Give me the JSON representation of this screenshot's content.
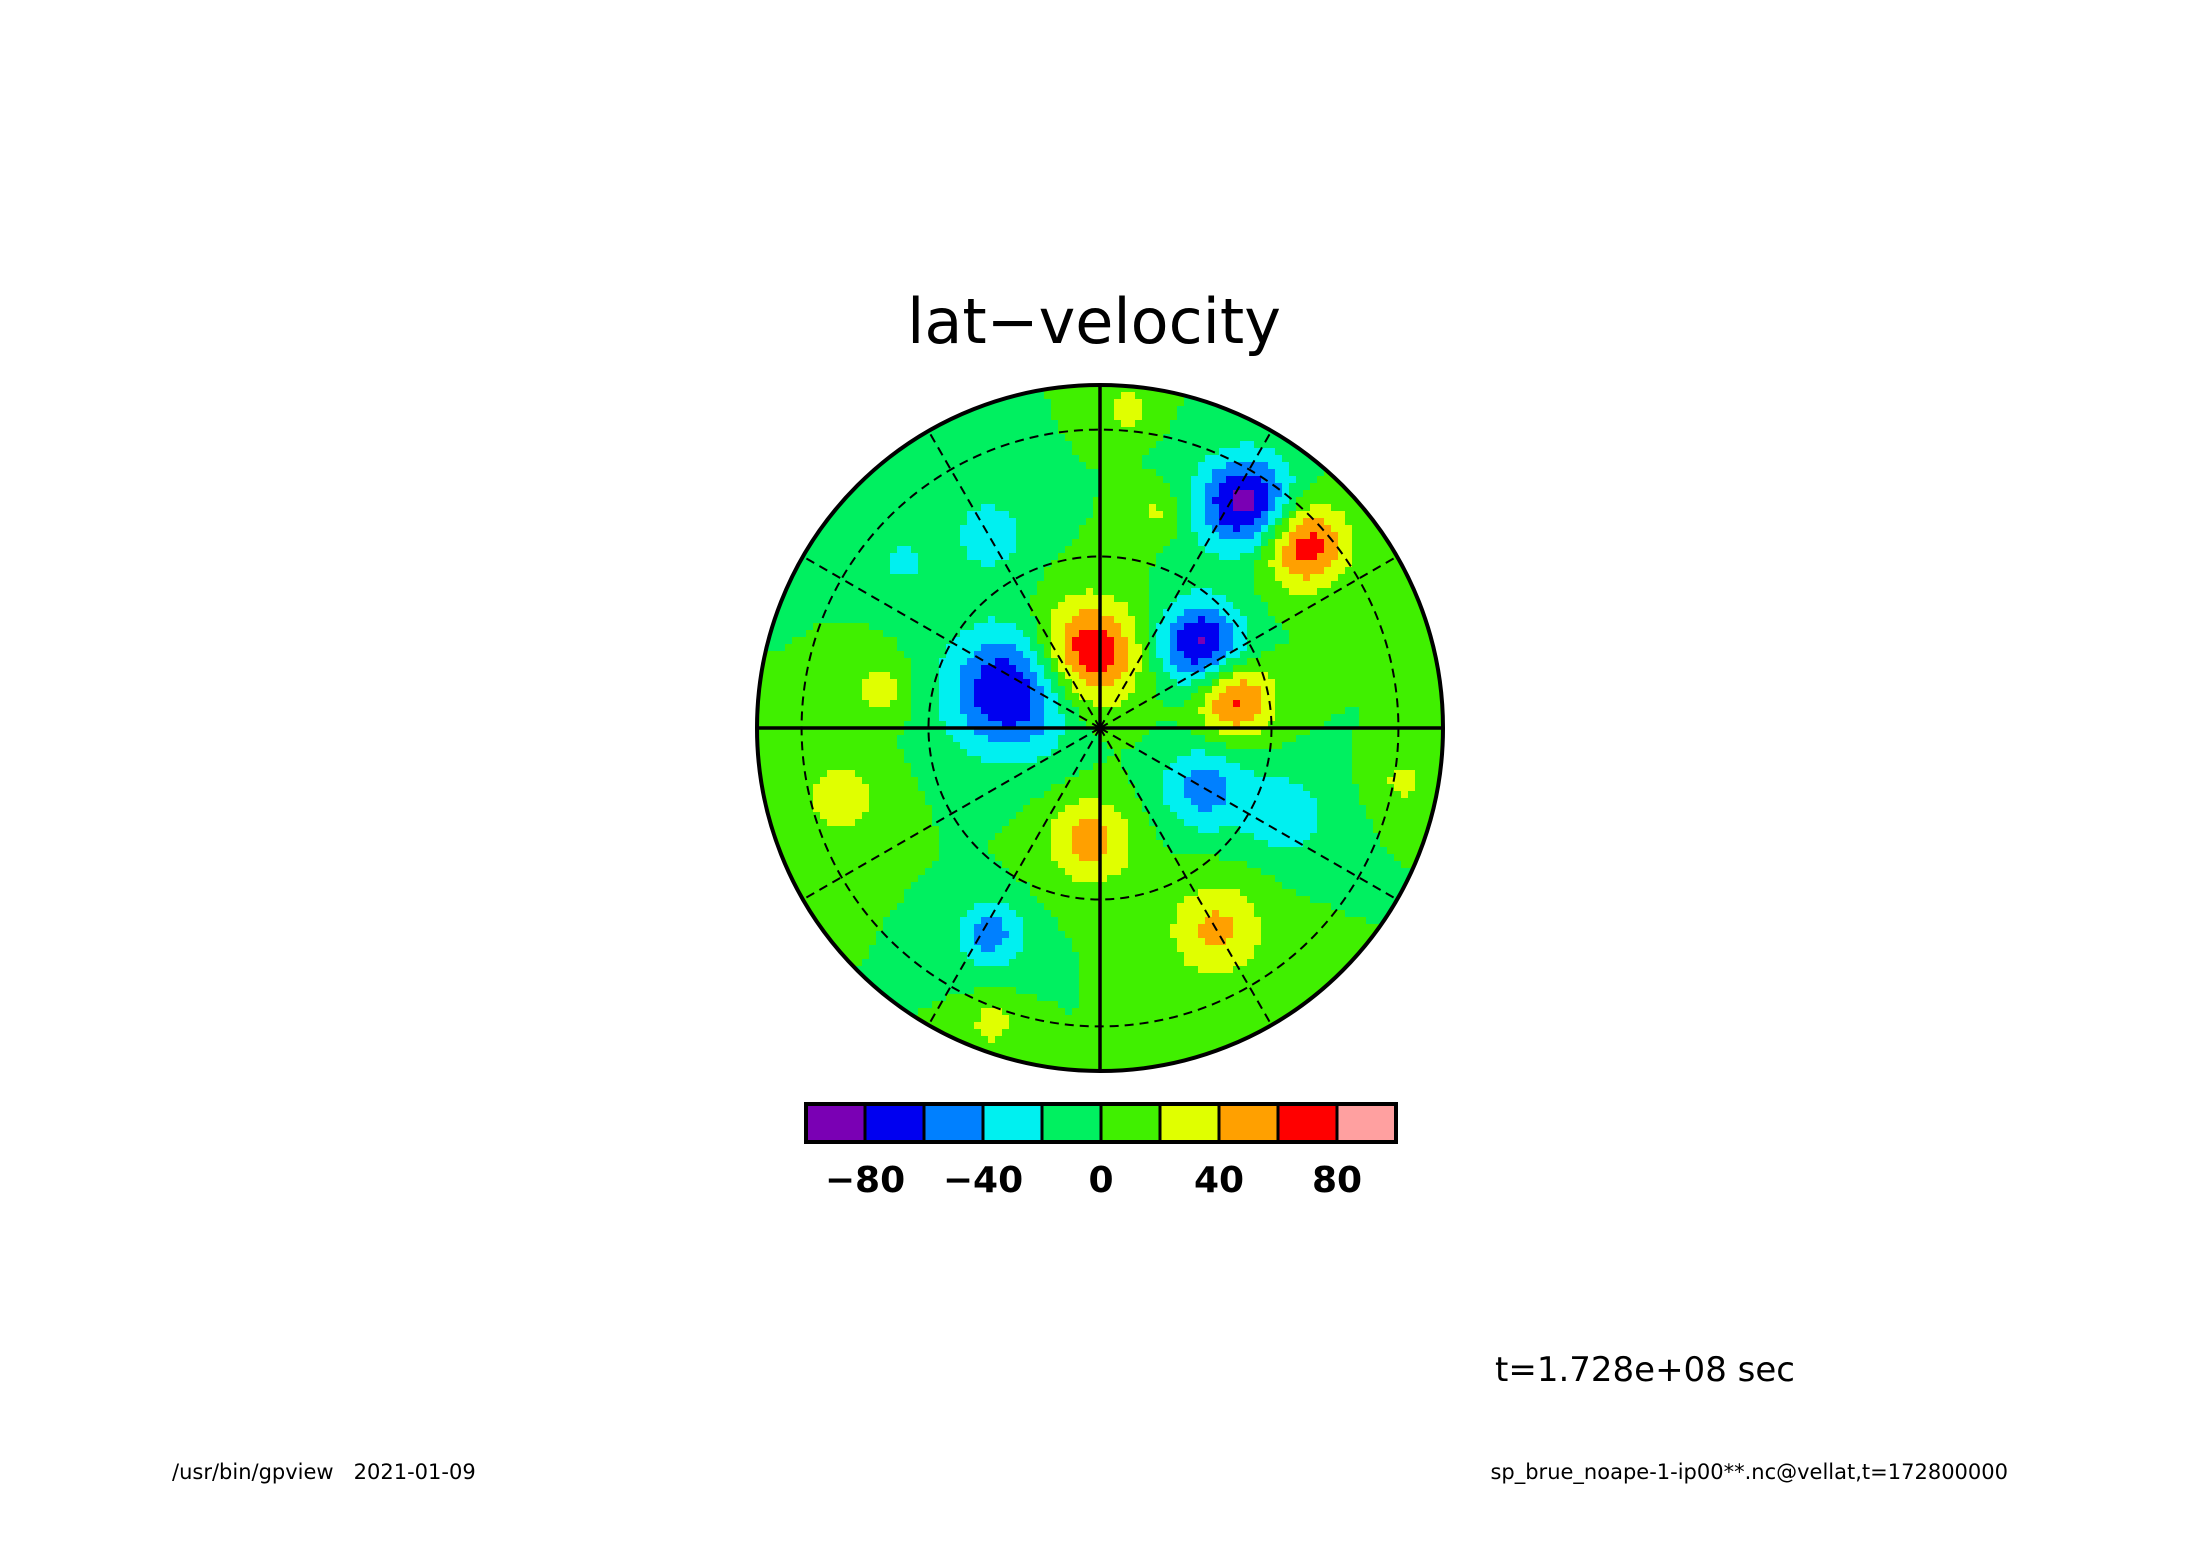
{
  "title": "lat−velocity",
  "time_label": "t=1.728e+08 sec",
  "footer": {
    "program": "/usr/bin/gpview",
    "date": "2021-01-09",
    "source": "sp_brue_noape-1-ip00**.nc@vellat,t=172800000"
  },
  "chart_data": {
    "type": "heatmap",
    "projection": "polar-stereographic",
    "title": "lat−velocity",
    "colorbar": {
      "colors": [
        "#7a00b4",
        "#0000f0",
        "#0080ff",
        "#00f0f0",
        "#00f060",
        "#40f000",
        "#e0ff00",
        "#ffa000",
        "#ff0000",
        "#ffa0a0"
      ],
      "ticks": [
        {
          "value": -80,
          "label": "−80"
        },
        {
          "value": -40,
          "label": "−40"
        },
        {
          "value": 0,
          "label": "0"
        },
        {
          "value": 40,
          "label": "40"
        },
        {
          "value": 80,
          "label": "80"
        }
      ],
      "range": [
        -100,
        100
      ],
      "step": 20
    },
    "background_value": 0,
    "features": [
      {
        "azimuth": 100,
        "radius": 0.22,
        "value": 85,
        "spread": 0.11
      },
      {
        "azimuth": 40,
        "radius": 0.38,
        "value": -85,
        "spread": 0.09
      },
      {
        "azimuth": 57,
        "radius": 0.78,
        "value": -90,
        "spread": 0.1
      },
      {
        "azimuth": 42,
        "radius": 0.8,
        "value": 75,
        "spread": 0.09
      },
      {
        "azimuth": 12,
        "radius": 0.4,
        "value": 70,
        "spread": 0.08
      },
      {
        "azimuth": 157,
        "radius": 0.28,
        "value": -85,
        "spread": 0.13
      },
      {
        "azimuth": -30,
        "radius": 0.35,
        "value": -50,
        "spread": 0.09
      },
      {
        "azimuth": -95,
        "radius": 0.33,
        "value": 50,
        "spread": 0.09
      },
      {
        "azimuth": -60,
        "radius": 0.68,
        "value": 45,
        "spread": 0.1
      },
      {
        "azimuth": -118,
        "radius": 0.68,
        "value": -50,
        "spread": 0.07
      },
      {
        "azimuth": -25,
        "radius": 0.6,
        "value": -35,
        "spread": 0.09
      },
      {
        "azimuth": 120,
        "radius": 0.65,
        "value": -30,
        "spread": 0.09
      },
      {
        "azimuth": -165,
        "radius": 0.78,
        "value": 30,
        "spread": 0.09
      },
      {
        "azimuth": -10,
        "radius": 0.9,
        "value": 25,
        "spread": 0.06
      },
      {
        "azimuth": 85,
        "radius": 0.93,
        "value": 30,
        "spread": 0.05
      },
      {
        "azimuth": 170,
        "radius": 0.65,
        "value": 30,
        "spread": 0.06
      },
      {
        "azimuth": -110,
        "radius": 0.92,
        "value": 30,
        "spread": 0.05
      },
      {
        "azimuth": 140,
        "radius": 0.75,
        "value": -25,
        "spread": 0.06
      },
      {
        "azimuth": 75,
        "radius": 0.65,
        "value": 25,
        "spread": 0.05
      }
    ]
  }
}
